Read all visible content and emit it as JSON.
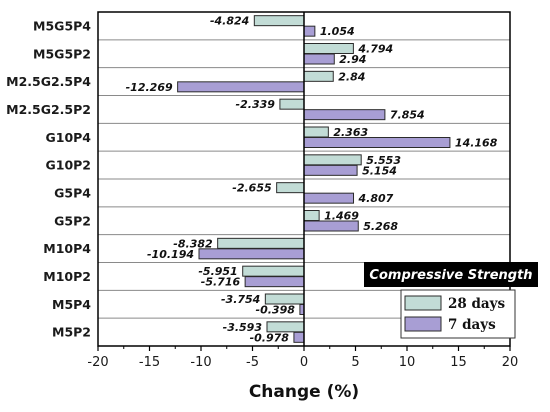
{
  "chart_data": {
    "type": "bar",
    "orientation": "horizontal",
    "categories": [
      "M5G5P4",
      "M5G5P2",
      "M2.5G2.5P4",
      "M2.5G2.5P2",
      "G10P4",
      "G10P2",
      "G5P4",
      "G5P2",
      "M10P4",
      "M10P2",
      "M5P4",
      "M5P2"
    ],
    "series": [
      {
        "name": "28 days",
        "color": "#c2dcd6",
        "values": [
          -4.824,
          4.794,
          2.84,
          -2.339,
          2.363,
          5.553,
          -2.655,
          1.469,
          -8.382,
          -5.951,
          -3.754,
          -3.593
        ]
      },
      {
        "name": "7 days",
        "color": "#a89ed4",
        "values": [
          1.054,
          2.94,
          -12.269,
          7.854,
          14.168,
          5.154,
          4.807,
          5.268,
          -10.194,
          -5.716,
          -0.398,
          -0.978
        ]
      }
    ],
    "xlabel": "Change (%)",
    "ylabel": "",
    "xlim": [
      -20,
      20
    ],
    "xticks": [
      -20,
      -15,
      -10,
      -5,
      0,
      5,
      10,
      15,
      20
    ],
    "legend_title": "Compressive Strength",
    "legend_position": "bottom-right",
    "grid": "horizontal"
  }
}
